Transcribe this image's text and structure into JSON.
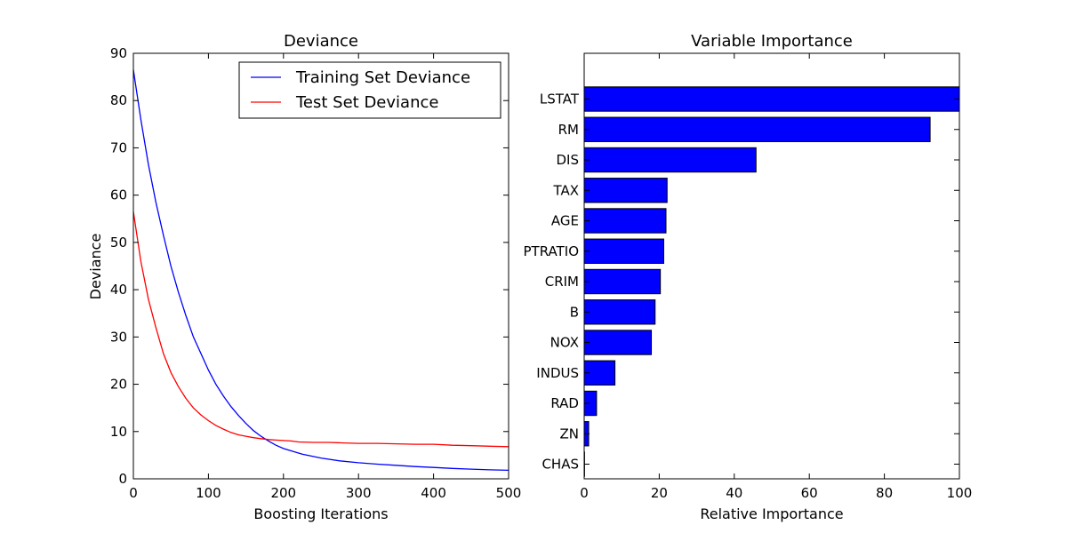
{
  "chart_data": [
    {
      "type": "line",
      "title": "Deviance",
      "xlabel": "Boosting Iterations",
      "ylabel": "Deviance",
      "xlim": [
        0,
        500
      ],
      "ylim": [
        0,
        90
      ],
      "xticks": [
        "0",
        "100",
        "200",
        "300",
        "400",
        "500"
      ],
      "yticks": [
        "0",
        "10",
        "20",
        "30",
        "40",
        "50",
        "60",
        "70",
        "80",
        "90"
      ],
      "grid": false,
      "legend_position": "top-right",
      "series": [
        {
          "name": "Training Set Deviance",
          "color": "#0000ff",
          "x": [
            0,
            10,
            20,
            30,
            40,
            50,
            60,
            70,
            80,
            90,
            100,
            110,
            120,
            130,
            140,
            150,
            160,
            170,
            180,
            190,
            200,
            225,
            250,
            275,
            300,
            325,
            350,
            375,
            400,
            425,
            450,
            475,
            500
          ],
          "y": [
            86.5,
            76.0,
            66.5,
            58.5,
            51.5,
            45.0,
            39.5,
            34.5,
            30.0,
            26.5,
            23.0,
            20.0,
            17.5,
            15.3,
            13.4,
            11.7,
            10.2,
            9.0,
            8.0,
            7.1,
            6.4,
            5.2,
            4.4,
            3.8,
            3.4,
            3.1,
            2.85,
            2.6,
            2.4,
            2.2,
            2.05,
            1.9,
            1.8
          ]
        },
        {
          "name": "Test Set Deviance",
          "color": "#ff0000",
          "x": [
            0,
            10,
            20,
            30,
            40,
            50,
            60,
            70,
            80,
            90,
            100,
            110,
            120,
            130,
            140,
            150,
            160,
            170,
            180,
            190,
            200,
            210,
            220,
            240,
            260,
            280,
            300,
            325,
            350,
            375,
            400,
            425,
            450,
            475,
            500
          ],
          "y": [
            56.5,
            46.0,
            38.0,
            32.0,
            26.5,
            22.5,
            19.5,
            17.0,
            15.0,
            13.5,
            12.3,
            11.3,
            10.5,
            9.8,
            9.3,
            9.0,
            8.7,
            8.5,
            8.3,
            8.2,
            8.1,
            8.0,
            7.8,
            7.7,
            7.7,
            7.6,
            7.5,
            7.5,
            7.4,
            7.3,
            7.3,
            7.1,
            7.0,
            6.9,
            6.8
          ]
        }
      ]
    },
    {
      "type": "bar",
      "orientation": "horizontal",
      "title": "Variable Importance",
      "xlabel": "Relative Importance",
      "ylabel": "",
      "xlim": [
        0,
        100
      ],
      "xticks": [
        "0",
        "20",
        "40",
        "60",
        "80",
        "100"
      ],
      "bar_color": "#0000ff",
      "grid": false,
      "categories": [
        "LSTAT",
        "RM",
        "DIS",
        "TAX",
        "AGE",
        "PTRATIO",
        "CRIM",
        "B",
        "NOX",
        "INDUS",
        "RAD",
        "ZN",
        "CHAS"
      ],
      "values": [
        100,
        92.2,
        45.8,
        22.1,
        21.8,
        21.2,
        20.3,
        18.9,
        17.9,
        8.2,
        3.3,
        1.2,
        0.1
      ]
    }
  ]
}
